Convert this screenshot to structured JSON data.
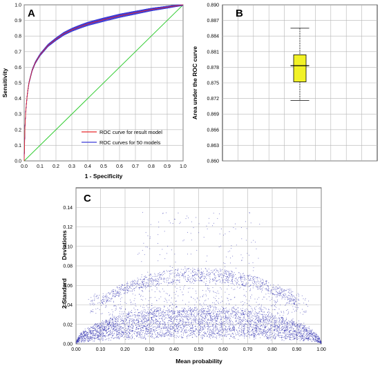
{
  "chart_data": [
    {
      "panel": "A",
      "type": "line",
      "xlabel": "1 - Specificity",
      "ylabel": "Sensitivity",
      "xlim": [
        0,
        1
      ],
      "ylim": [
        0,
        1
      ],
      "xticks": [
        "0.0",
        "0.1",
        "0.2",
        "0.3",
        "0.4",
        "0.5",
        "0.6",
        "0.7",
        "0.8",
        "0.9",
        "1.0"
      ],
      "yticks": [
        "0.0",
        "0.1",
        "0.2",
        "0.3",
        "0.4",
        "0.5",
        "0.6",
        "0.7",
        "0.8",
        "0.9",
        "1.0"
      ],
      "grid": true,
      "legend_position": "bottom-right",
      "series": [
        {
          "name": "ROC curve for result model",
          "color": "#e8282a",
          "x": [
            0,
            0.005,
            0.01,
            0.02,
            0.03,
            0.05,
            0.07,
            0.1,
            0.15,
            0.2,
            0.25,
            0.3,
            0.35,
            0.4,
            0.5,
            0.6,
            0.7,
            0.8,
            0.9,
            0.95,
            1.0
          ],
          "y": [
            0,
            0.22,
            0.32,
            0.43,
            0.5,
            0.58,
            0.63,
            0.68,
            0.74,
            0.78,
            0.815,
            0.84,
            0.86,
            0.878,
            0.905,
            0.93,
            0.95,
            0.97,
            0.985,
            0.993,
            1.0
          ]
        },
        {
          "name": "ROC curves for 50 models",
          "color": "#3a3ad6",
          "count": 50,
          "spread": 0.012
        },
        {
          "color": "#33cc33",
          "x": [
            0,
            1
          ],
          "y": [
            0,
            1
          ]
        }
      ]
    },
    {
      "panel": "B",
      "type": "box",
      "ylabel": "Area under the ROC curve",
      "ylim": [
        0.86,
        0.89
      ],
      "yticks": [
        "0.860",
        "0.863",
        "0.866",
        "0.869",
        "0.872",
        "0.875",
        "0.878",
        "0.881",
        "0.884",
        "0.887",
        "0.890"
      ],
      "grid": true,
      "box": {
        "min": 0.8716,
        "q1": 0.8752,
        "median": 0.8783,
        "q3": 0.8804,
        "max": 0.8855,
        "fill": "#f2f226"
      }
    },
    {
      "panel": "C",
      "type": "scatter",
      "xlabel": "Mean probability",
      "ylabel": [
        "Deviations",
        "2 Standard"
      ],
      "xlim": [
        0,
        1
      ],
      "ylim": [
        0,
        0.16
      ],
      "xticks": [
        "0.00",
        "0.10",
        "0.20",
        "0.30",
        "0.40",
        "0.50",
        "0.60",
        "0.70",
        "0.80",
        "0.90",
        "1.00"
      ],
      "yticks": [
        "0.00",
        "0.02",
        "0.04",
        "0.06",
        "0.08",
        "0.10",
        "0.12",
        "0.14"
      ],
      "grid": true,
      "point_color": "#1f1fa8",
      "point_count": 6000,
      "description_of_pattern": {
        "main_band_peak": 0.023,
        "upper_arc_peak": 0.078,
        "outliers_max": 0.135
      }
    }
  ]
}
